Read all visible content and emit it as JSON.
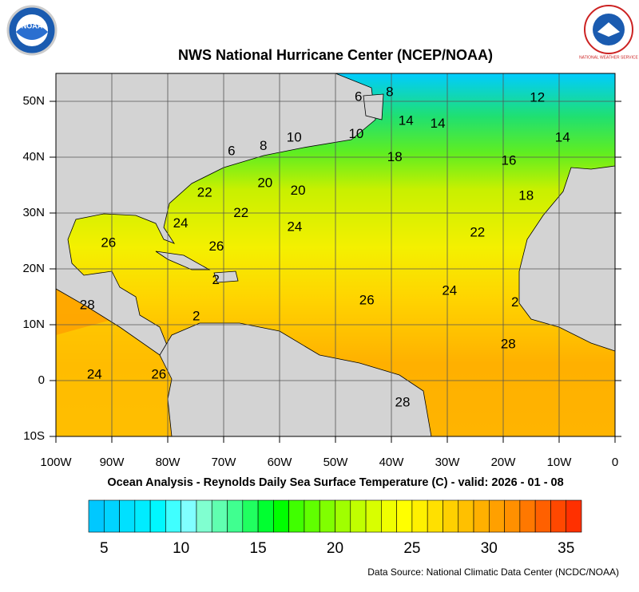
{
  "title": "NWS National Hurricane Center (NCEP/NOAA)",
  "subtitle": "Ocean Analysis - Reynolds Daily Sea Surface Temperature (C) - valid: 2026 - 01 - 08",
  "source": "Data Source: National Climatic Data Center (NCDC/NOAA)",
  "logos": {
    "noaa": "NOAA",
    "nws": "NATIONAL WEATHER SERVICE"
  },
  "map": {
    "xlim": [
      -100,
      0
    ],
    "ylim": [
      -10,
      55
    ],
    "grid": true,
    "xticks": [
      {
        "value": -100,
        "label": "100W"
      },
      {
        "value": -90,
        "label": "90W"
      },
      {
        "value": -80,
        "label": "80W"
      },
      {
        "value": -70,
        "label": "70W"
      },
      {
        "value": -60,
        "label": "60W"
      },
      {
        "value": -50,
        "label": "50W"
      },
      {
        "value": -40,
        "label": "40W"
      },
      {
        "value": -30,
        "label": "30W"
      },
      {
        "value": -20,
        "label": "20W"
      },
      {
        "value": -10,
        "label": "10W"
      },
      0
    ],
    "yticks": [
      {
        "value": -10,
        "label": "10S"
      },
      0,
      {
        "value": 10,
        "label": "10N"
      },
      {
        "value": 20,
        "label": "20N"
      },
      {
        "value": 30,
        "label": "30N"
      },
      {
        "value": 40,
        "label": "40N"
      },
      {
        "value": 50,
        "label": "50N"
      }
    ],
    "contour_labels": [
      {
        "text": "6",
        "lon": -45.9,
        "lat": 50.7
      },
      {
        "text": "8",
        "lon": -40.3,
        "lat": 51.6
      },
      {
        "text": "12",
        "lon": -13.9,
        "lat": 50.6
      },
      {
        "text": "14",
        "lon": -37.4,
        "lat": 46.4
      },
      {
        "text": "14",
        "lon": -31.7,
        "lat": 45.9
      },
      {
        "text": "14",
        "lon": -9.4,
        "lat": 43.4
      },
      {
        "text": "10",
        "lon": -46.3,
        "lat": 44.1
      },
      {
        "text": "10",
        "lon": -57.4,
        "lat": 43.4
      },
      {
        "text": "8",
        "lon": -62.9,
        "lat": 41.9
      },
      {
        "text": "6",
        "lon": -68.6,
        "lat": 41.0
      },
      {
        "text": "18",
        "lon": -39.4,
        "lat": 39.9
      },
      {
        "text": "16",
        "lon": -19.0,
        "lat": 39.3
      },
      {
        "text": "20",
        "lon": -62.6,
        "lat": 35.3
      },
      {
        "text": "20",
        "lon": -56.7,
        "lat": 33.9
      },
      {
        "text": "22",
        "lon": -73.4,
        "lat": 33.6
      },
      {
        "text": "18",
        "lon": -15.9,
        "lat": 33.0
      },
      {
        "text": "22",
        "lon": -66.9,
        "lat": 29.9
      },
      {
        "text": "24",
        "lon": -77.7,
        "lat": 28.1
      },
      {
        "text": "24",
        "lon": -57.3,
        "lat": 27.4
      },
      {
        "text": "22",
        "lon": -24.6,
        "lat": 26.4
      },
      {
        "text": "26",
        "lon": -90.6,
        "lat": 24.6
      },
      {
        "text": "26",
        "lon": -71.3,
        "lat": 23.9
      },
      {
        "text": "2",
        "lon": -71.4,
        "lat": 17.9
      },
      {
        "text": "28",
        "lon": -94.4,
        "lat": 13.4
      },
      {
        "text": "24",
        "lon": -29.6,
        "lat": 16.0
      },
      {
        "text": "26",
        "lon": -44.4,
        "lat": 14.3
      },
      {
        "text": "2",
        "lon": -17.9,
        "lat": 13.9
      },
      {
        "text": "2",
        "lon": -74.9,
        "lat": 11.4
      },
      {
        "text": "28",
        "lon": -19.1,
        "lat": 6.4
      },
      {
        "text": "24",
        "lon": -93.1,
        "lat": 1.0
      },
      {
        "text": "26",
        "lon": -81.6,
        "lat": 1.0
      },
      {
        "text": "28",
        "lon": -38.0,
        "lat": -4.0
      }
    ]
  },
  "colorbar": {
    "lim": [
      4,
      36
    ],
    "ticks": [
      5,
      10,
      15,
      20,
      25,
      30,
      35
    ],
    "colors": [
      "#00c8ff",
      "#00d4ff",
      "#00e0ff",
      "#00ecff",
      "#00f8ff",
      "#40ffff",
      "#80ffff",
      "#80ffd0",
      "#60ffb0",
      "#40ff90",
      "#20ff60",
      "#00ff30",
      "#00ff00",
      "#40ff00",
      "#60ff00",
      "#80ff00",
      "#a0ff00",
      "#c0ff00",
      "#d8ff00",
      "#f0ff00",
      "#ffff00",
      "#fff000",
      "#ffe000",
      "#ffd000",
      "#ffc000",
      "#ffb000",
      "#ffa000",
      "#ff9000",
      "#ff7800",
      "#ff6000",
      "#ff4800",
      "#ff3000"
    ]
  }
}
